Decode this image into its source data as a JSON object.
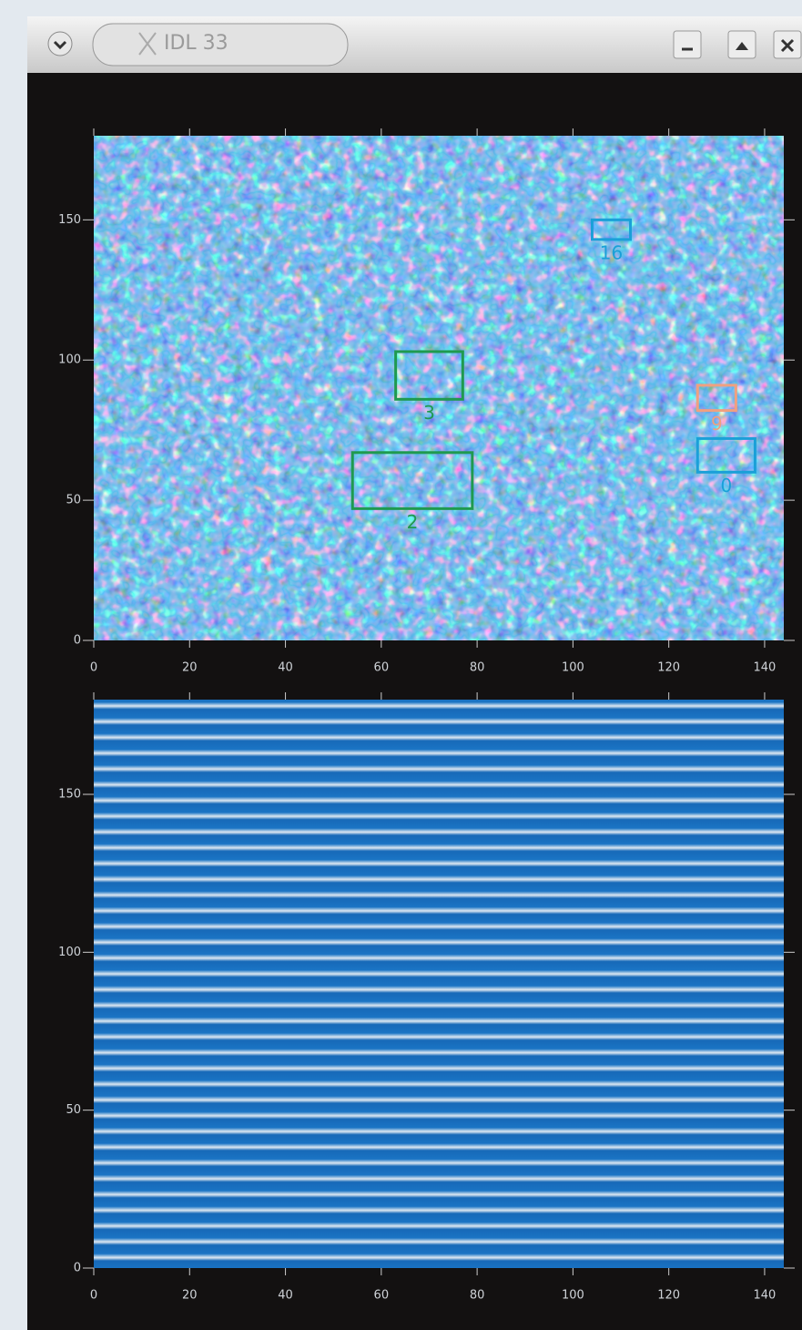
{
  "window": {
    "title": "IDL 33"
  },
  "plots": [
    {
      "xlim": [
        0,
        144
      ],
      "ylim": [
        0,
        180
      ],
      "xticks": [
        0,
        20,
        40,
        60,
        80,
        100,
        120,
        140
      ],
      "yticks": [
        0,
        50,
        100,
        150
      ],
      "regions": [
        {
          "label": "3",
          "color": "#1f9a4f",
          "x": [
            63,
            77
          ],
          "y": [
            86,
            103
          ]
        },
        {
          "label": "2",
          "color": "#1f9a4f",
          "x": [
            54,
            79
          ],
          "y": [
            47,
            67
          ]
        },
        {
          "label": "9",
          "color": "#f0a080",
          "x": [
            126,
            134
          ],
          "y": [
            82,
            91
          ]
        },
        {
          "label": "0",
          "color": "#1aa0d8",
          "x": [
            126,
            138
          ],
          "y": [
            60,
            72
          ]
        },
        {
          "label": "16",
          "color": "#1aa0d8",
          "x": [
            104,
            112
          ],
          "y": [
            143,
            150
          ]
        }
      ]
    },
    {
      "xlim": [
        0,
        144
      ],
      "ylim": [
        0,
        180
      ],
      "xticks": [
        0,
        20,
        40,
        60,
        80,
        100,
        120,
        140
      ],
      "yticks": [
        0,
        50,
        100,
        150
      ],
      "regions": []
    }
  ]
}
